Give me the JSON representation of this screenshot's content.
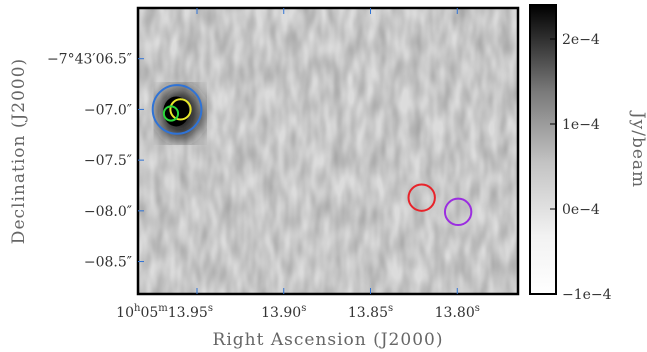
{
  "chart_data": {
    "type": "heatmap",
    "xlabel": "Right Ascension (J2000)",
    "ylabel": "Declination (J2000)",
    "colorbar_label": "Jy/beam",
    "colormap": "grayscale (white = low, black = high)",
    "x_axis": {
      "ra_start_s": 13.984,
      "ra_end_s": 13.765,
      "reversed": true,
      "ticks": [
        {
          "value": 13.95,
          "label_parts": {
            "h": "10",
            "m": "05",
            "s": "13.95"
          },
          "text": "10h05m13.95s"
        },
        {
          "value": 13.9,
          "text": "13.90",
          "sup": "s"
        },
        {
          "value": 13.85,
          "text": "13.85",
          "sup": "s"
        },
        {
          "value": 13.8,
          "text": "13.80",
          "sup": "s"
        }
      ]
    },
    "y_axis": {
      "dec_top": 6.0,
      "dec_bottom": 8.82,
      "ticks": [
        {
          "value": 6.5,
          "text": "−7°43′06.5″"
        },
        {
          "value": 7.0,
          "text": "−07.0″"
        },
        {
          "value": 7.5,
          "text": "−07.5″"
        },
        {
          "value": 8.0,
          "text": "−08.0″"
        },
        {
          "value": 8.5,
          "text": "−08.5″"
        }
      ]
    },
    "colorbar": {
      "range": [
        -0.0001,
        0.00024
      ],
      "ticks": [
        {
          "value": 0.0002,
          "text": "2e−4"
        },
        {
          "value": 0.0001,
          "text": "1e−4"
        },
        {
          "value": 0.0,
          "text": "0e−4"
        },
        {
          "value": -0.0001,
          "text": "−1e−4"
        }
      ]
    },
    "sources": [
      {
        "ra": 13.962,
        "dec": 7.02,
        "peak": 0.00024
      }
    ],
    "regions": [
      {
        "ra": 13.9615,
        "dec": 7.0,
        "radius_arcsec": 0.24,
        "color": "#2f73d6"
      },
      {
        "ra": 13.9595,
        "dec": 7.0,
        "radius_arcsec": 0.1,
        "color": "#e8e82a"
      },
      {
        "ra": 13.965,
        "dec": 7.04,
        "radius_arcsec": 0.07,
        "color": "#29d63a"
      },
      {
        "ra": 13.8205,
        "dec": 7.87,
        "radius_arcsec": 0.13,
        "color": "#e8232a"
      },
      {
        "ra": 13.7995,
        "dec": 8.01,
        "radius_arcsec": 0.13,
        "color": "#9b2de0"
      }
    ]
  }
}
